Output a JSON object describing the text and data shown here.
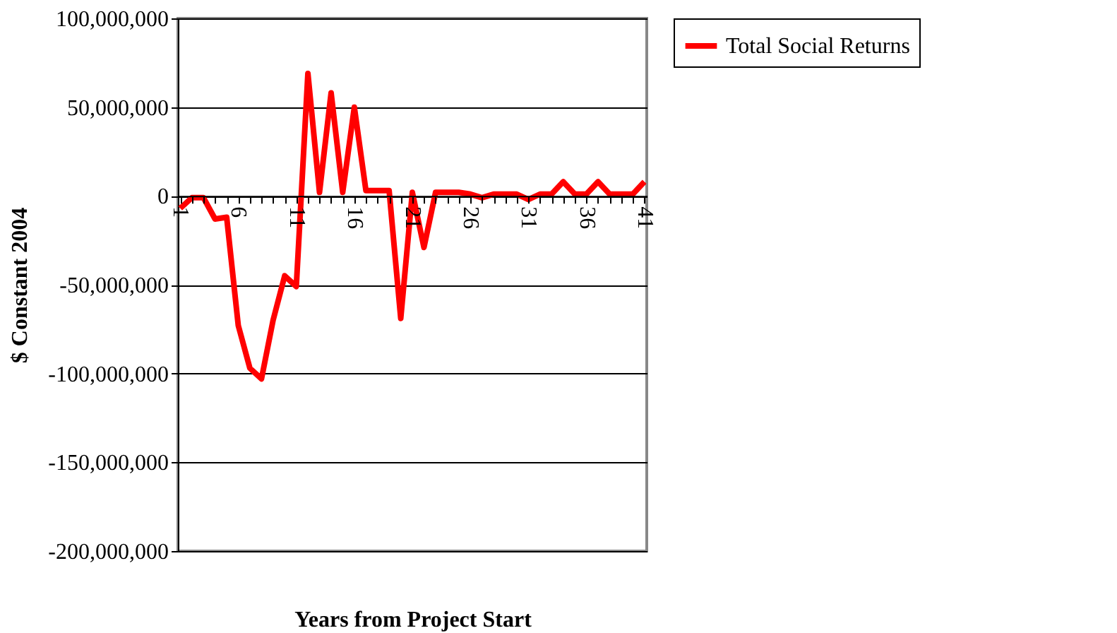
{
  "chart_data": {
    "type": "line",
    "xlabel": "Years from Project Start",
    "ylabel": "$ Constant 2004",
    "categories": [
      "1",
      null,
      null,
      null,
      null,
      "6",
      null,
      null,
      null,
      null,
      "11",
      null,
      null,
      null,
      null,
      "16",
      null,
      null,
      null,
      null,
      "21",
      null,
      null,
      null,
      null,
      "26",
      null,
      null,
      null,
      null,
      "31",
      null,
      null,
      null,
      null,
      "36",
      null,
      null,
      null,
      null,
      "41"
    ],
    "series": [
      {
        "name": "Total Social Returns",
        "color": "#ff0000",
        "values": [
          -7000000,
          -1000000,
          -1000000,
          -13000000,
          -12000000,
          -73000000,
          -97000000,
          -103000000,
          -70000000,
          -45000000,
          -51000000,
          69000000,
          2000000,
          58000000,
          2000000,
          50000000,
          3000000,
          3000000,
          3000000,
          -69000000,
          2000000,
          -29000000,
          2000000,
          2000000,
          2000000,
          1000000,
          -1000000,
          1000000,
          1000000,
          1000000,
          -2000000,
          1000000,
          1000000,
          8000000,
          1000000,
          1000000,
          8000000,
          1000000,
          1000000,
          1000000,
          8000000
        ]
      }
    ],
    "ylim": [
      -200000000,
      100000000
    ],
    "yticks": [
      {
        "value": -200000000,
        "label": "-200,000,000"
      },
      {
        "value": -150000000,
        "label": "-150,000,000"
      },
      {
        "value": -100000000,
        "label": "-100,000,000"
      },
      {
        "value": -50000000,
        "label": "-50,000,000"
      },
      {
        "value": 0,
        "label": "0"
      },
      {
        "value": 50000000,
        "label": "50,000,000"
      },
      {
        "value": 100000000,
        "label": "100,000,000"
      }
    ],
    "grid": "y",
    "legend": "right",
    "marker": "none",
    "line_style": "solid"
  }
}
